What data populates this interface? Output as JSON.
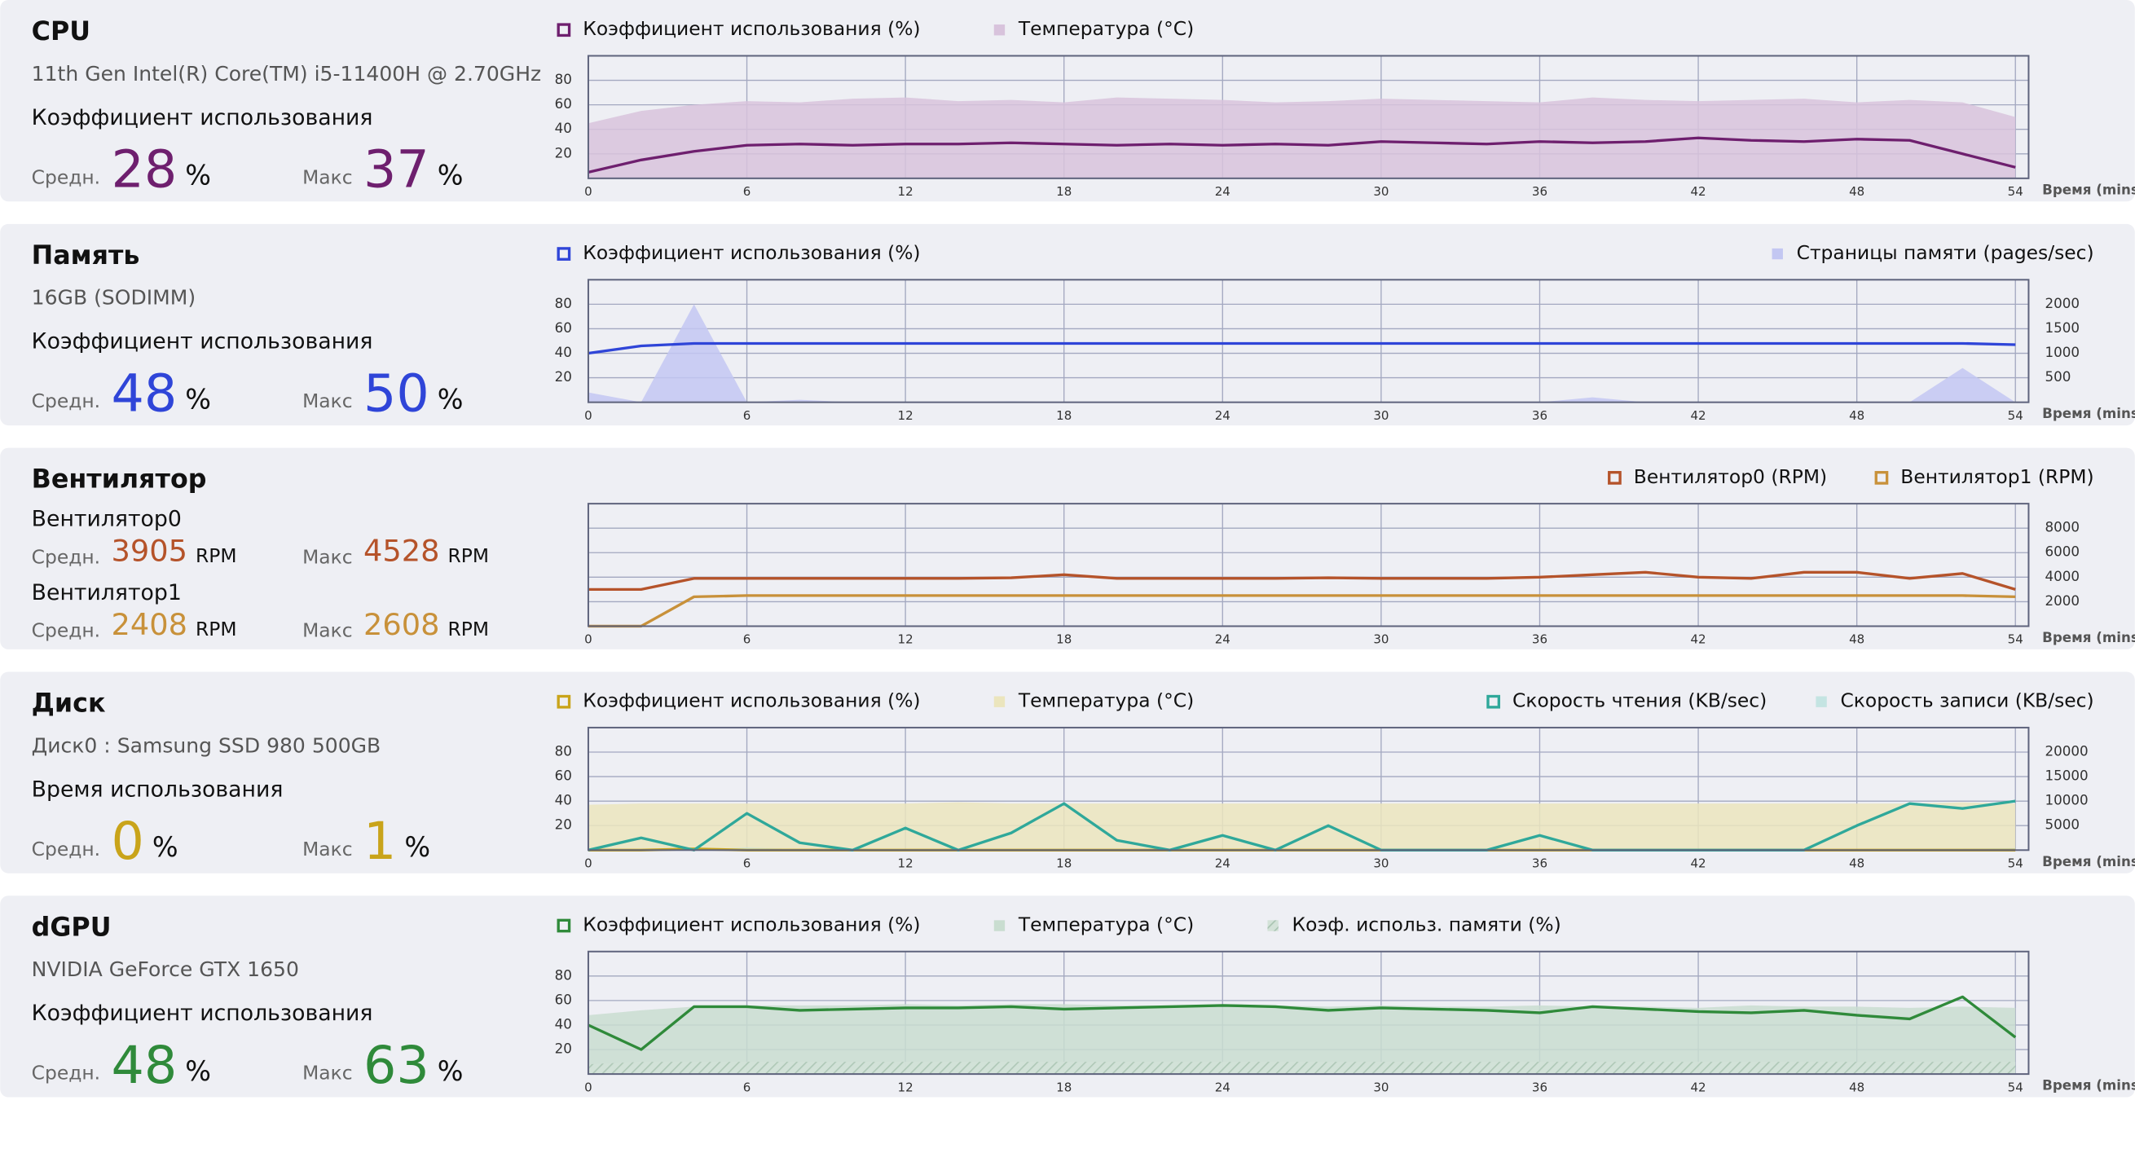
{
  "panels": [
    {
      "title": "CPU",
      "subtitle": "11th Gen Intel(R) Core(TM) i5-11400H @ 2.70GHz",
      "groups": [
        {
          "label": "Коэффициент использования",
          "color": "#6e1f6e",
          "stats": [
            {
              "label": "Средн.",
              "value": 28,
              "unit": "%"
            },
            {
              "label": "Макс",
              "value": 37,
              "unit": "%"
            }
          ]
        }
      ],
      "chart": {
        "type": "line",
        "x": [
          0,
          2,
          4,
          6,
          8,
          10,
          12,
          14,
          16,
          18,
          20,
          22,
          24,
          26,
          28,
          30,
          32,
          34,
          36,
          38,
          40,
          42,
          44,
          46,
          48,
          50,
          52,
          54
        ],
        "xlim": [
          0,
          54.5
        ],
        "xticks": [
          0,
          6,
          12,
          18,
          24,
          30,
          36,
          42,
          48,
          54
        ],
        "x_label": "Время (mins)",
        "ylim": [
          0,
          100
        ],
        "yticks": [
          20,
          40,
          60,
          80
        ],
        "series": [
          {
            "name": "Коэффициент использования (%)",
            "kind": "line",
            "color": "#6e1f6e",
            "values": [
              5,
              15,
              22,
              27,
              28,
              27,
              28,
              28,
              29,
              28,
              27,
              28,
              27,
              28,
              27,
              30,
              29,
              28,
              30,
              29,
              30,
              33,
              31,
              30,
              32,
              31,
              20,
              9
            ]
          },
          {
            "name": "Температура (°C)",
            "kind": "area",
            "color": "#d8c3dc",
            "values": [
              45,
              55,
              60,
              63,
              62,
              65,
              66,
              63,
              64,
              62,
              66,
              65,
              64,
              62,
              63,
              65,
              64,
              63,
              62,
              66,
              64,
              63,
              64,
              65,
              62,
              64,
              62,
              50
            ]
          }
        ]
      }
    },
    {
      "title": "Память",
      "subtitle": "16GB (SODIMM)",
      "groups": [
        {
          "label": "Коэффициент использования",
          "color": "#2f45d8",
          "stats": [
            {
              "label": "Средн.",
              "value": 48,
              "unit": "%"
            },
            {
              "label": "Макс",
              "value": 50,
              "unit": "%"
            }
          ]
        }
      ],
      "chart": {
        "type": "line",
        "x": [
          0,
          2,
          4,
          6,
          8,
          10,
          12,
          14,
          16,
          18,
          20,
          22,
          24,
          26,
          28,
          30,
          32,
          34,
          36,
          38,
          40,
          42,
          44,
          46,
          48,
          50,
          52,
          54
        ],
        "xlim": [
          0,
          54.5
        ],
        "xticks": [
          0,
          6,
          12,
          18,
          24,
          30,
          36,
          42,
          48,
          54
        ],
        "x_label": "Время (mins)",
        "ylim": [
          0,
          100
        ],
        "yticks": [
          20,
          40,
          60,
          80
        ],
        "y2lim": [
          0,
          2500
        ],
        "y2ticks": [
          500,
          1000,
          1500,
          2000
        ],
        "series": [
          {
            "name": "Коэффициент использования (%)",
            "kind": "line",
            "color": "#2f45d8",
            "values": [
              40,
              46,
              48,
              48,
              48,
              48,
              48,
              48,
              48,
              48,
              48,
              48,
              48,
              48,
              48,
              48,
              48,
              48,
              48,
              48,
              48,
              48,
              48,
              48,
              48,
              48,
              48,
              47
            ]
          },
          {
            "name": "Страницы памяти (pages/sec)",
            "kind": "area",
            "axis": "y2",
            "color": "#c3c7f2",
            "values": [
              200,
              0,
              2000,
              0,
              50,
              0,
              0,
              0,
              20,
              0,
              0,
              0,
              0,
              0,
              0,
              0,
              0,
              0,
              0,
              100,
              0,
              0,
              0,
              0,
              0,
              0,
              700,
              0
            ]
          }
        ]
      }
    },
    {
      "title": "Вентилятор",
      "groups": [
        {
          "label": "Вентилятор0",
          "color": "#b5532a",
          "stats": [
            {
              "label": "Средн.",
              "value": 3905,
              "unit": "RPM"
            },
            {
              "label": "Макс",
              "value": 4528,
              "unit": "RPM"
            }
          ]
        },
        {
          "label": "Вентилятор1",
          "color": "#c8913a",
          "stats": [
            {
              "label": "Средн.",
              "value": 2408,
              "unit": "RPM"
            },
            {
              "label": "Макс",
              "value": 2608,
              "unit": "RPM"
            }
          ]
        }
      ],
      "chart": {
        "type": "line",
        "x": [
          0,
          2,
          4,
          6,
          8,
          10,
          12,
          14,
          16,
          18,
          20,
          22,
          24,
          26,
          28,
          30,
          32,
          34,
          36,
          38,
          40,
          42,
          44,
          46,
          48,
          50,
          52,
          54
        ],
        "xlim": [
          0,
          54.5
        ],
        "xticks": [
          0,
          6,
          12,
          18,
          24,
          30,
          36,
          42,
          48,
          54
        ],
        "x_label": "Время (mins)",
        "y2lim": [
          0,
          10000
        ],
        "y2ticks": [
          2000,
          4000,
          6000,
          8000
        ],
        "series": [
          {
            "name": "Вентилятор0 (RPM)",
            "kind": "line",
            "axis": "y2",
            "color": "#b5532a",
            "values": [
              3000,
              3000,
              3900,
              3900,
              3900,
              3900,
              3900,
              3900,
              3950,
              4200,
              3900,
              3900,
              3900,
              3900,
              3950,
              3900,
              3900,
              3900,
              4000,
              4200,
              4400,
              4000,
              3900,
              4400,
              4400,
              3900,
              4300,
              3000
            ]
          },
          {
            "name": "Вентилятор1 (RPM)",
            "kind": "line",
            "axis": "y2",
            "color": "#c8913a",
            "values": [
              0,
              0,
              2400,
              2500,
              2500,
              2500,
              2500,
              2500,
              2500,
              2500,
              2500,
              2500,
              2500,
              2500,
              2500,
              2500,
              2500,
              2500,
              2500,
              2500,
              2500,
              2500,
              2500,
              2500,
              2500,
              2500,
              2500,
              2400
            ]
          }
        ]
      }
    },
    {
      "title": "Диск",
      "subtitle": "Диск0 : Samsung SSD 980 500GB",
      "groups": [
        {
          "label": "Время использования",
          "color": "#c9a41a",
          "stats": [
            {
              "label": "Средн.",
              "value": 0,
              "unit": "%"
            },
            {
              "label": "Макс",
              "value": 1,
              "unit": "%"
            }
          ]
        }
      ],
      "chart": {
        "type": "line",
        "x": [
          0,
          2,
          4,
          6,
          8,
          10,
          12,
          14,
          16,
          18,
          20,
          22,
          24,
          26,
          28,
          30,
          32,
          34,
          36,
          38,
          40,
          42,
          44,
          46,
          48,
          50,
          52,
          54
        ],
        "xlim": [
          0,
          54.5
        ],
        "xticks": [
          0,
          6,
          12,
          18,
          24,
          30,
          36,
          42,
          48,
          54
        ],
        "x_label": "Время (mins)",
        "ylim": [
          0,
          100
        ],
        "yticks": [
          20,
          40,
          60,
          80
        ],
        "y2lim": [
          0,
          25000
        ],
        "y2ticks": [
          5000,
          10000,
          15000,
          20000
        ],
        "series": [
          {
            "name": "Коэффициент использования (%)",
            "kind": "line",
            "color": "#c9a41a",
            "values": [
              0,
              0,
              1,
              0,
              0,
              0,
              0,
              0,
              0,
              0,
              0,
              0,
              0,
              0,
              0,
              0,
              0,
              0,
              0,
              0,
              0,
              0,
              0,
              0,
              0,
              0,
              0,
              0
            ]
          },
          {
            "name": "Температура (°C)",
            "kind": "area",
            "color": "#ebe5bd",
            "values": [
              37,
              38,
              38,
              38,
              38,
              38,
              38,
              39,
              38,
              38,
              38,
              38,
              38,
              38,
              38,
              38,
              38,
              38,
              38,
              38,
              38,
              38,
              38,
              38,
              38,
              38,
              39,
              38
            ]
          },
          {
            "name": "Скорость чтения (KB/sec)",
            "kind": "line",
            "axis": "y2",
            "color": "#2fa89a",
            "values": [
              0,
              2500,
              0,
              7500,
              1500,
              0,
              4500,
              0,
              3500,
              9500,
              2000,
              0,
              3000,
              0,
              5000,
              0,
              0,
              0,
              3000,
              0,
              0,
              0,
              0,
              0,
              5000,
              9500,
              8500,
              10000
            ]
          },
          {
            "name": "Скорость записи (KB/sec)",
            "kind": "area",
            "axis": "y2",
            "color": "#c4e4e2",
            "values": [
              300,
              200,
              100,
              500,
              200,
              100,
              100,
              100,
              200,
              300,
              100,
              100,
              100,
              100,
              200,
              100,
              100,
              100,
              100,
              100,
              100,
              100,
              100,
              100,
              200,
              300,
              300,
              400
            ]
          }
        ]
      }
    },
    {
      "title": "dGPU",
      "subtitle": "NVIDIA GeForce GTX 1650",
      "groups": [
        {
          "label": "Коэффициент использования",
          "color": "#2f8a3a",
          "stats": [
            {
              "label": "Средн.",
              "value": 48,
              "unit": "%"
            },
            {
              "label": "Макс",
              "value": 63,
              "unit": "%"
            }
          ]
        }
      ],
      "chart": {
        "type": "line",
        "x": [
          0,
          2,
          4,
          6,
          8,
          10,
          12,
          14,
          16,
          18,
          20,
          22,
          24,
          26,
          28,
          30,
          32,
          34,
          36,
          38,
          40,
          42,
          44,
          46,
          48,
          50,
          52,
          54
        ],
        "xlim": [
          0,
          54.5
        ],
        "xticks": [
          0,
          6,
          12,
          18,
          24,
          30,
          36,
          42,
          48,
          54
        ],
        "x_label": "Время (mins)",
        "ylim": [
          0,
          100
        ],
        "yticks": [
          20,
          40,
          60,
          80
        ],
        "series": [
          {
            "name": "Коэффициент использования (%)",
            "kind": "line",
            "color": "#2f8a3a",
            "values": [
              40,
              20,
              55,
              55,
              52,
              53,
              54,
              54,
              55,
              53,
              54,
              55,
              56,
              55,
              52,
              54,
              53,
              52,
              50,
              55,
              53,
              51,
              50,
              52,
              48,
              45,
              63,
              30
            ]
          },
          {
            "name": "Температура (°C)",
            "kind": "area",
            "color": "#c9ddd0",
            "values": [
              48,
              52,
              55,
              56,
              56,
              56,
              57,
              56,
              57,
              57,
              56,
              56,
              55,
              56,
              55,
              56,
              55,
              55,
              56,
              55,
              55,
              54,
              56,
              55,
              55,
              54,
              55,
              54
            ]
          },
          {
            "name": "Коэф. использ. памяти (%)",
            "kind": "hatched",
            "color": "#b7cfc0",
            "values": [
              8,
              10,
              10,
              10,
              10,
              10,
              10,
              10,
              10,
              10,
              10,
              10,
              10,
              10,
              10,
              10,
              10,
              10,
              10,
              10,
              10,
              10,
              10,
              10,
              10,
              10,
              10,
              10
            ]
          }
        ]
      }
    }
  ]
}
